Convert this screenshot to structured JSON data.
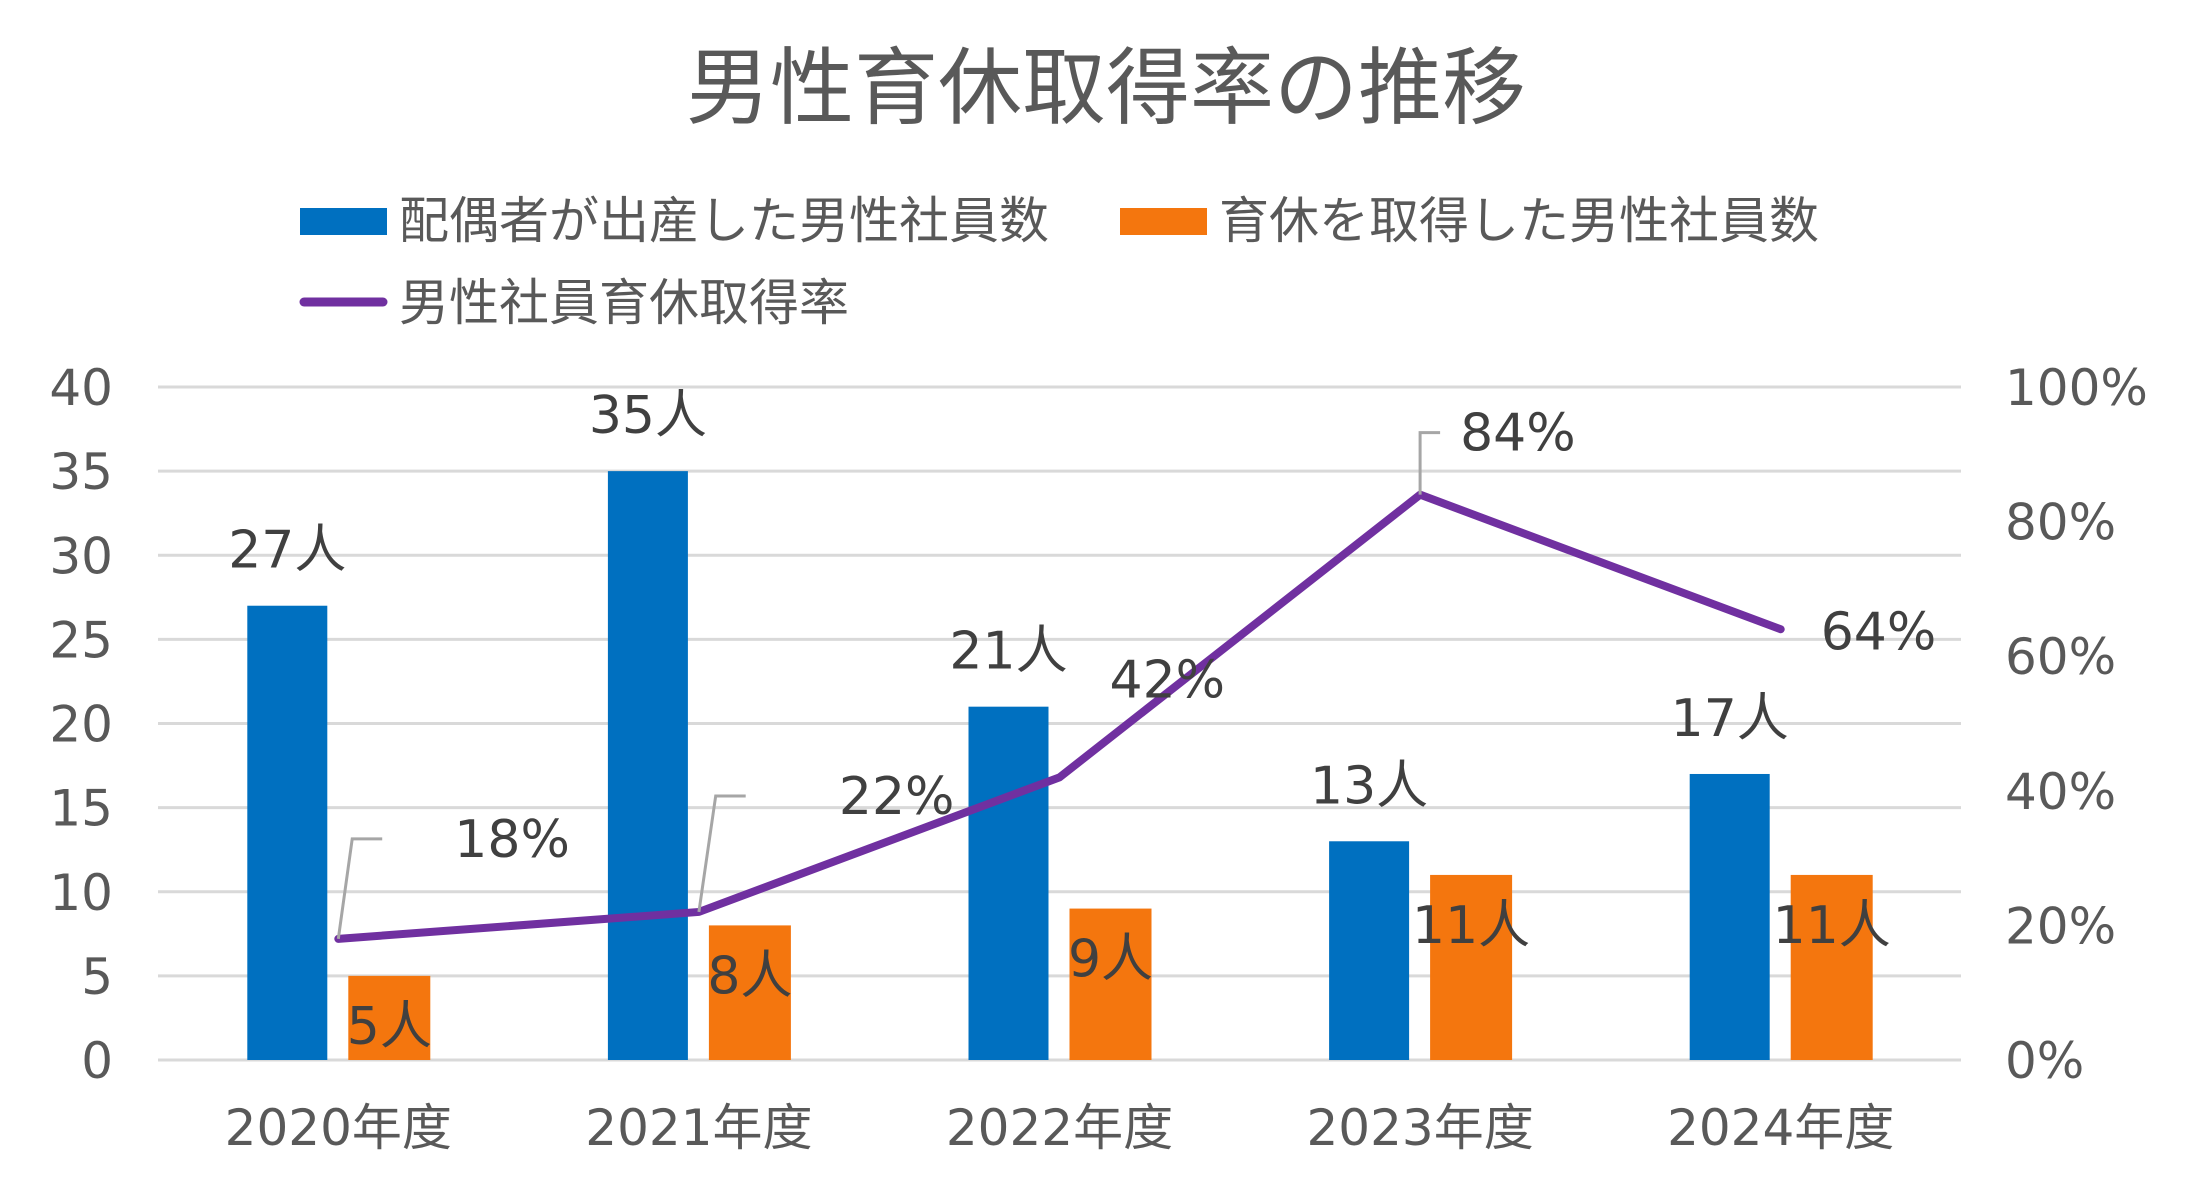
{
  "chart_data": {
    "type": "bar",
    "title": "男性育休取得率の推移",
    "categories": [
      "2020年度",
      "2021年度",
      "2022年度",
      "2023年度",
      "2024年度"
    ],
    "series": [
      {
        "name": "配偶者が出産した男性社員数",
        "type": "bar",
        "axis": "left",
        "values": [
          27,
          35,
          21,
          13,
          17
        ],
        "labels": [
          "27人",
          "35人",
          "21人",
          "13人",
          "17人"
        ],
        "color": "#0070C0"
      },
      {
        "name": "育休を取得した男性社員数",
        "type": "bar",
        "axis": "left",
        "values": [
          5,
          8,
          9,
          11,
          11
        ],
        "labels": [
          "5人",
          "8人",
          "9人",
          "11人",
          "11人"
        ],
        "color": "#F4760E"
      },
      {
        "name": "男性社員育休取得率",
        "type": "line",
        "axis": "right",
        "values": [
          18,
          22,
          42,
          84,
          64
        ],
        "labels": [
          "18%",
          "22%",
          "42%",
          "84%",
          "64%"
        ],
        "color": "#7030A0"
      }
    ],
    "y_left": {
      "range": [
        0,
        40
      ],
      "ticks": [
        "0",
        "5",
        "10",
        "15",
        "20",
        "25",
        "30",
        "35",
        "40"
      ]
    },
    "y_right": {
      "range": [
        0,
        100
      ],
      "ticks": [
        "0%",
        "20%",
        "40%",
        "60%",
        "80%",
        "100%"
      ]
    },
    "grid": true,
    "legend_position": "top"
  }
}
